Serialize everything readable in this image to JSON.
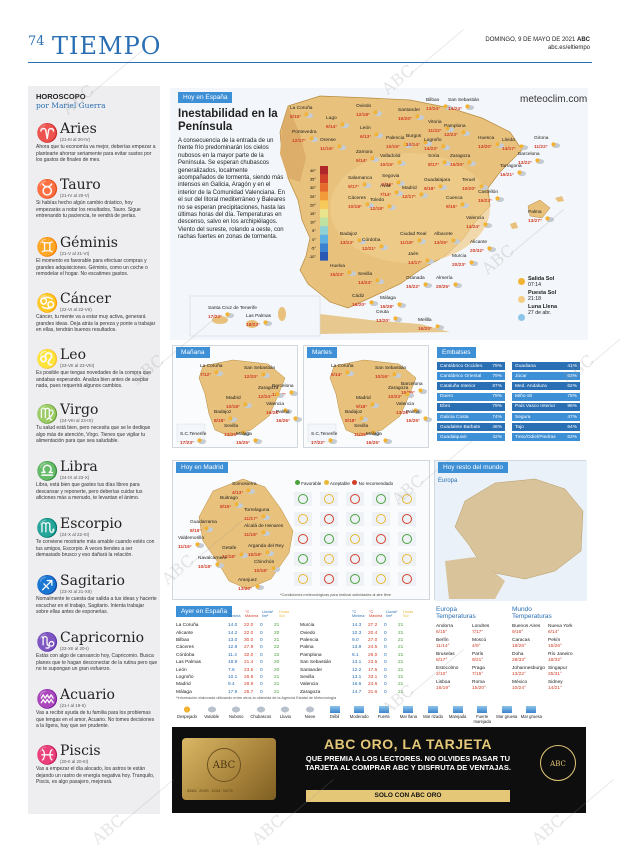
{
  "header": {
    "page_number": "74",
    "section_title": "TIEMPO",
    "date": "DOMINGO, 9 DE MAYO DE 2021",
    "paper": "ABC",
    "url": "abc.es/eltiempo"
  },
  "horoscope": {
    "title": "HOROSCOPO",
    "author": "por Mariel Guerra",
    "signs": [
      {
        "name": "Aries",
        "glyph": "♈",
        "dates": "(21-III al 20-IV)",
        "text": "Ahora que tu economía va mejor, deberías empezar a plantearte ahorrar seriamente para evitar sustos por los gastos de finales de mes."
      },
      {
        "name": "Tauro",
        "glyph": "♉",
        "dates": "(21-IV al 20-V)",
        "text": "Si habías hecho algún cambio drástico, hoy empezarás a notar los resultados, Tauro. Sigue entrenando tu paciencia, te vendrá de perlas."
      },
      {
        "name": "Géminis",
        "glyph": "♊",
        "dates": "(21-V al 21-VI)",
        "text": "El momento es favorable para efectuar compras y grandes adquisiciones. Géminis, como un coche o remodelar el hogar. No escatimes gastos."
      },
      {
        "name": "Cáncer",
        "glyph": "♋",
        "dates": "(22-VI al 22-VII)",
        "text": "Cáncer, tu mente va a estar muy activa, generará grandes ideas. Deja atrás la pereza y ponte a trabajar en ellas, tendrán buenos resultados."
      },
      {
        "name": "Leo",
        "glyph": "♌",
        "dates": "(23-VII al 23-VIII)",
        "text": "Es posible que tengas novedades de la compra que andabas esperando. Analiza bien antes de aceptar nada, pues requerirá algunos cambios."
      },
      {
        "name": "Virgo",
        "glyph": "♍",
        "dates": "(24-VIII al 23-IX)",
        "text": "Tu salud está bien, pero necesita que se le dedique algo más de atención, Virgo. Tienes que vigilar tu alimentación para que sea saludable."
      },
      {
        "name": "Libra",
        "glyph": "♎",
        "dates": "(24-IX al 23-X)",
        "text": "Libra, está bien que gastes tus días libres para descansar y reponerte, pero deberías cuidar tus aficiones más a menudo, te levantan el ánimo."
      },
      {
        "name": "Escorpio",
        "glyph": "♏",
        "dates": "(24-X al 22-XI)",
        "text": "Te conviene mostrarte más amable cuando estés con tus amigos, Escorpio. A veces tiendes a ser demasiado brusco y eso dañará la relación."
      },
      {
        "name": "Sagitario",
        "glyph": "♐",
        "dates": "(23-XI al 21-XII)",
        "text": "Nomalmente te cuesta dar salida a tus ideas y hacerte escuchar en el trabajo, Sagitario. Intenta trabajar sobre ellas antes de exponerlas."
      },
      {
        "name": "Capricornio",
        "glyph": "♑",
        "dates": "(22-XII al 20-I)",
        "text": "Estás con algo de cansancio hoy, Capricornio. Busca planes que te hagan desconectar de la rutina pero que no te supongan un gran esfuerzo."
      },
      {
        "name": "Acuario",
        "glyph": "♒",
        "dates": "(21-I al 19-II)",
        "text": "Vas a recibir ayuda de tu familia para los problemas que tengas en el amor, Acuario. No tomes decisiones a la ligera, hay que ser prudente."
      },
      {
        "name": "Piscis",
        "glyph": "♓",
        "dates": "(20-II al 20-III)",
        "text": "Vas a empezar el día alocado, los astros te están dejando un rastro de energía negativa hoy. Tranquilo, Piscis, es algo pasajero, mejorará."
      }
    ]
  },
  "today_spain": {
    "tab": "Hoy en España",
    "brand": "meteoclim.com",
    "headline": "Inestabilidad en la Península",
    "lede": "A consecuencia de la entrada de un frente frío predominarán los cielos nubosos en la mayor parte de la Península. Se esperan chubascos generalizados, localmente acompañados de tormenta, siendo más intensos en Galicia, Aragón y en el interior de la Comunidad Valenciana. En el sur del litoral mediterráneo y Baleares no se esperan precipitaciones, hasta las últimas horas del día. Temperaturas en descenso, salvo en los archipiélagos. Viento del sureste, rolando a oeste, con rachas fuertes en zonas de tormenta.",
    "temp_scale": [
      "40°",
      "35°",
      "30°",
      "25°",
      "20°",
      "15°",
      "10°",
      "5°",
      "0°",
      "-5°",
      "-10°"
    ],
    "cities": [
      {
        "name": "La Coruña",
        "temp": "8/15°"
      },
      {
        "name": "Oviedo",
        "temp": "12/18°"
      },
      {
        "name": "Lugo",
        "temp": "6/14°"
      },
      {
        "name": "Santander",
        "temp": "16/20°"
      },
      {
        "name": "Bilbao",
        "temp": "13/24°"
      },
      {
        "name": "San Sebastián",
        "temp": "14/24°"
      },
      {
        "name": "Vitoria",
        "temp": "11/22°"
      },
      {
        "name": "Pamplona",
        "temp": "12/23°"
      },
      {
        "name": "Huesca",
        "temp": "13/20°"
      },
      {
        "name": "Lleida",
        "temp": "14/17°"
      },
      {
        "name": "Girona",
        "temp": "11/22°"
      },
      {
        "name": "Pontevedra",
        "temp": "12/17°"
      },
      {
        "name": "Orense",
        "temp": "11/16°"
      },
      {
        "name": "León",
        "temp": "6/13°"
      },
      {
        "name": "Palencia",
        "temp": "10/15°"
      },
      {
        "name": "Burgos",
        "temp": "10/14°"
      },
      {
        "name": "Logroño",
        "temp": "14/23°"
      },
      {
        "name": "Barcelona",
        "temp": "13/22°"
      },
      {
        "name": "Zamora",
        "temp": "9/14°"
      },
      {
        "name": "Valladolid",
        "temp": "10/15°"
      },
      {
        "name": "Soria",
        "temp": "8/17°"
      },
      {
        "name": "Zaragoza",
        "temp": "15/20°"
      },
      {
        "name": "Tarragona",
        "temp": "16/21°"
      },
      {
        "name": "Salamanca",
        "temp": "9/17°"
      },
      {
        "name": "Segovia",
        "temp": "9/16°"
      },
      {
        "name": "Guadalajara",
        "temp": "9/18°"
      },
      {
        "name": "Teruel",
        "temp": "10/20°"
      },
      {
        "name": "Ávila",
        "temp": "7/14°"
      },
      {
        "name": "Madrid",
        "temp": "12/17°"
      },
      {
        "name": "Castellón",
        "temp": "15/23°"
      },
      {
        "name": "Cáceres",
        "temp": "10/18°"
      },
      {
        "name": "Toledo",
        "temp": "12/18°"
      },
      {
        "name": "Cuenca",
        "temp": "9/15°"
      },
      {
        "name": "Palma",
        "temp": "13/27°"
      },
      {
        "name": "Valencia",
        "temp": "14/24°"
      },
      {
        "name": "Badajoz",
        "temp": "13/23°"
      },
      {
        "name": "Ciudad Real",
        "temp": "11/18°"
      },
      {
        "name": "Albacete",
        "temp": "13/25°"
      },
      {
        "name": "Alicante",
        "temp": "20/32°"
      },
      {
        "name": "Córdoba",
        "temp": "12/21°"
      },
      {
        "name": "Jaén",
        "temp": "14/17°"
      },
      {
        "name": "Murcia",
        "temp": "20/23°"
      },
      {
        "name": "Huelva",
        "temp": "15/23°"
      },
      {
        "name": "Sevilla",
        "temp": "14/24°"
      },
      {
        "name": "Granada",
        "temp": "15/22°"
      },
      {
        "name": "Almería",
        "temp": "20/25°"
      },
      {
        "name": "Cádiz",
        "temp": "16/20°"
      },
      {
        "name": "Málaga",
        "temp": "16/28°"
      },
      {
        "name": "Ceuta",
        "temp": "13/20°"
      },
      {
        "name": "Melilla",
        "temp": "16/20°"
      },
      {
        "name": "Santa Cruz de Tenerife",
        "temp": "17/23°"
      },
      {
        "name": "Las Palmas",
        "temp": "18/23°"
      }
    ],
    "sun": {
      "sunrise_label": "Salida Sol",
      "sunrise": "07:14",
      "sunset_label": "Puesta Sol",
      "sunset": "21:18",
      "moon_label": "Luna Llena",
      "moon": "27 de abr."
    }
  },
  "forecast_small": {
    "manana": {
      "tab": "Mañana",
      "cities": [
        {
          "name": "La Coruña",
          "temp": "7/12°"
        },
        {
          "name": "San Sebastián",
          "temp": "12/20°"
        },
        {
          "name": "Barcelona",
          "temp": "12/23°"
        },
        {
          "name": "Zaragoza",
          "temp": "12/24°"
        },
        {
          "name": "Madrid",
          "temp": "10/18°"
        },
        {
          "name": "Valencia",
          "temp": "16/28°"
        },
        {
          "name": "Badajoz",
          "temp": "8/18°"
        },
        {
          "name": "Palma",
          "temp": "16/26°"
        },
        {
          "name": "Sevilla",
          "temp": "13/25°"
        },
        {
          "name": "Málaga",
          "temp": "15/25°"
        },
        {
          "name": "S.C.Tenerife",
          "temp": "17/23°"
        }
      ]
    },
    "martes": {
      "tab": "Martes",
      "cities": [
        {
          "name": "La Coruña",
          "temp": "6/14°"
        },
        {
          "name": "San Sebastián",
          "temp": "10/16°"
        },
        {
          "name": "Barcelona",
          "temp": "15/26°"
        },
        {
          "name": "Zaragoza",
          "temp": "10/23°"
        },
        {
          "name": "Madrid",
          "temp": "9/18°"
        },
        {
          "name": "Valencia",
          "temp": "13/26°"
        },
        {
          "name": "Badajoz",
          "temp": "8/18°"
        },
        {
          "name": "Palma",
          "temp": "15/25°"
        },
        {
          "name": "Sevilla",
          "temp": "11/25°"
        },
        {
          "name": "Málaga",
          "temp": "16/25°"
        },
        {
          "name": "S.C.Tenerife",
          "temp": "17/22°"
        }
      ]
    }
  },
  "embalses": {
    "tab": "Embalses",
    "left": [
      {
        "name": "Cantábrico Occiden.",
        "pct": "79%"
      },
      {
        "name": "Cantábrico Oriental",
        "pct": "79%"
      },
      {
        "name": "Cataluña Interior",
        "pct": "87%"
      },
      {
        "name": "Duero",
        "pct": "79%"
      },
      {
        "name": "Ebro",
        "pct": "79%"
      },
      {
        "name": "Galicia Costa",
        "pct": "74%"
      },
      {
        "name": "Guadalete Barbate",
        "pct": "46%"
      },
      {
        "name": "Guadalquivir",
        "pct": "42%"
      }
    ],
    "right": [
      {
        "name": "Guadiana",
        "pct": "41%"
      },
      {
        "name": "Júcar",
        "pct": "63%"
      },
      {
        "name": "Med. Andaluza",
        "pct": "62%"
      },
      {
        "name": "Miño-Sil",
        "pct": "78%"
      },
      {
        "name": "País Vasco Interior",
        "pct": "96%"
      },
      {
        "name": "Segura",
        "pct": "47%"
      },
      {
        "name": "Tajo",
        "pct": "64%"
      },
      {
        "name": "Tinto/Odiel/Piedras",
        "pct": "63%"
      }
    ]
  },
  "madrid": {
    "tab": "Hoy en Madrid",
    "cities": [
      {
        "name": "Somosierra",
        "temp": "4/13°"
      },
      {
        "name": "Buitrago",
        "temp": "8/15°"
      },
      {
        "name": "Torrelaguna",
        "temp": "11/17°"
      },
      {
        "name": "Guadarrama",
        "temp": "8/15°"
      },
      {
        "name": "Alcalá de Henares",
        "temp": "11/18°"
      },
      {
        "name": "Valdemorillo",
        "temp": "11/16°"
      },
      {
        "name": "Getafe",
        "temp": "12/18°"
      },
      {
        "name": "Arganda del Rey",
        "temp": "10/19°"
      },
      {
        "name": "Navalcarnero",
        "temp": "10/18°"
      },
      {
        "name": "Chinchón",
        "temp": "10/18°"
      },
      {
        "name": "Aranjuez",
        "temp": "13/20°"
      }
    ],
    "legend": {
      "good": "Favorable",
      "ok": "Aceptable",
      "bad": "No recomendado"
    },
    "note": "*Condiciones meteorológicas para realizar actividades al aire libre"
  },
  "world": {
    "tab": "Hoy resto del mundo",
    "label": "Europa"
  },
  "yesterday": {
    "tab": "Ayer en España",
    "head_min": "°C Mínima",
    "head_max": "°C Máxima",
    "head_rain": "Lluvia* l/m²",
    "head_h": "Horas Sol",
    "left": [
      {
        "name": "La Coruña",
        "min": "14.0",
        "max": "22.0",
        "r": "0",
        "h": "21"
      },
      {
        "name": "Alicante",
        "min": "14.2",
        "max": "22.0",
        "r": "0",
        "h": "20"
      },
      {
        "name": "Bilbao",
        "min": "13.0",
        "max": "30.0",
        "r": "0",
        "h": "21"
      },
      {
        "name": "Cáceres",
        "min": "12.8",
        "max": "27.9",
        "r": "0",
        "h": "22"
      },
      {
        "name": "Córdoba",
        "min": "11.4",
        "max": "32.0",
        "r": "0",
        "h": "22"
      },
      {
        "name": "Las Palmas",
        "min": "18.9",
        "max": "21.4",
        "r": "0",
        "h": "20"
      },
      {
        "name": "León",
        "min": "7.6",
        "max": "23.5",
        "r": "0",
        "h": "20"
      },
      {
        "name": "Logroño",
        "min": "10.1",
        "max": "26.8",
        "r": "0",
        "h": "21"
      },
      {
        "name": "Madrid",
        "min": "9.4",
        "max": "28.9",
        "r": "0",
        "h": "21"
      },
      {
        "name": "Málaga",
        "min": "17.9",
        "max": "25.7",
        "r": "0",
        "h": "21"
      }
    ],
    "right": [
      {
        "name": "Murcia",
        "min": "14.3",
        "max": "27.2",
        "r": "0",
        "h": "21"
      },
      {
        "name": "Oviedo",
        "min": "10.3",
        "max": "20.4",
        "r": "0",
        "h": "21"
      },
      {
        "name": "Palencia",
        "min": "9.0",
        "max": "27.0",
        "r": "0",
        "h": "21"
      },
      {
        "name": "Palma",
        "min": "13.9",
        "max": "24.5",
        "r": "0",
        "h": "21"
      },
      {
        "name": "Pamplona",
        "min": "8.1",
        "max": "29.0",
        "r": "0",
        "h": "21"
      },
      {
        "name": "San Sebastián",
        "min": "13.1",
        "max": "23.5",
        "r": "0",
        "h": "21"
      },
      {
        "name": "Santander",
        "min": "12.2",
        "max": "17.5",
        "r": "0",
        "h": "21"
      },
      {
        "name": "Sevilla",
        "min": "13.1",
        "max": "33.1",
        "r": "0",
        "h": "21"
      },
      {
        "name": "Valencia",
        "min": "16.6",
        "max": "24.6",
        "r": "0",
        "h": "21"
      },
      {
        "name": "Zaragoza",
        "min": "14.7",
        "max": "31.6",
        "r": "0",
        "h": "21"
      }
    ],
    "footnote": "*Información elaborada utilizando entre otros la obtenida de la Agencia Estatal de Meteorología"
  },
  "temps_europe": {
    "title": "Europa",
    "sub": "Temperaturas",
    "rows": [
      [
        "Andorra",
        "6/15°",
        "Londres",
        "7/17°"
      ],
      [
        "Berlín",
        "11/14°",
        "Moscú",
        "4/9°"
      ],
      [
        "Bruselas",
        "8/17°",
        "París",
        "9/21°"
      ],
      [
        "Estocolmo",
        "2/10°",
        "Praga",
        "7/15°"
      ],
      [
        "Lisboa",
        "16/19°",
        "Roma",
        "15/20°"
      ]
    ]
  },
  "temps_world": {
    "title": "Mundo",
    "sub": "Temperaturas",
    "rows": [
      [
        "Buenos Aires",
        "9/16°",
        "Nueva York",
        "6/14°"
      ],
      [
        "Caracas",
        "18/26°",
        "Pekín",
        "15/26°"
      ],
      [
        "Doha",
        "28/33°",
        "Río Janeiro",
        "18/32°"
      ],
      [
        "Johannesburgo",
        "13/22°",
        "Singapur",
        "25/31°"
      ],
      [
        "México",
        "10/24°",
        "Sidney",
        "14/21°"
      ]
    ]
  },
  "legend_symbols": [
    "Despejado",
    "Variable",
    "Nuboso",
    "Chubascos",
    "Lluvia",
    "Nieve",
    "Débil",
    "Moderado",
    "Fuerte",
    "Mar llana",
    "Mar rizada",
    "Marejada",
    "Fuerte marejada",
    "Mar gruesa",
    "Mar gruesa"
  ],
  "ad": {
    "title": "ABC ORO, LA TARJETA",
    "body": "QUE PREMIA A LOS LECTORES. NO OLVIDES PASAR TU TARJETA AL COMPRAR ABC Y DISFRUTA DE VENTAJAS.",
    "footer": "SOLO CON ABC ORO",
    "card_logo": "ABC",
    "card_number": "9999 2020 1234 5678",
    "seal": "ABC"
  }
}
